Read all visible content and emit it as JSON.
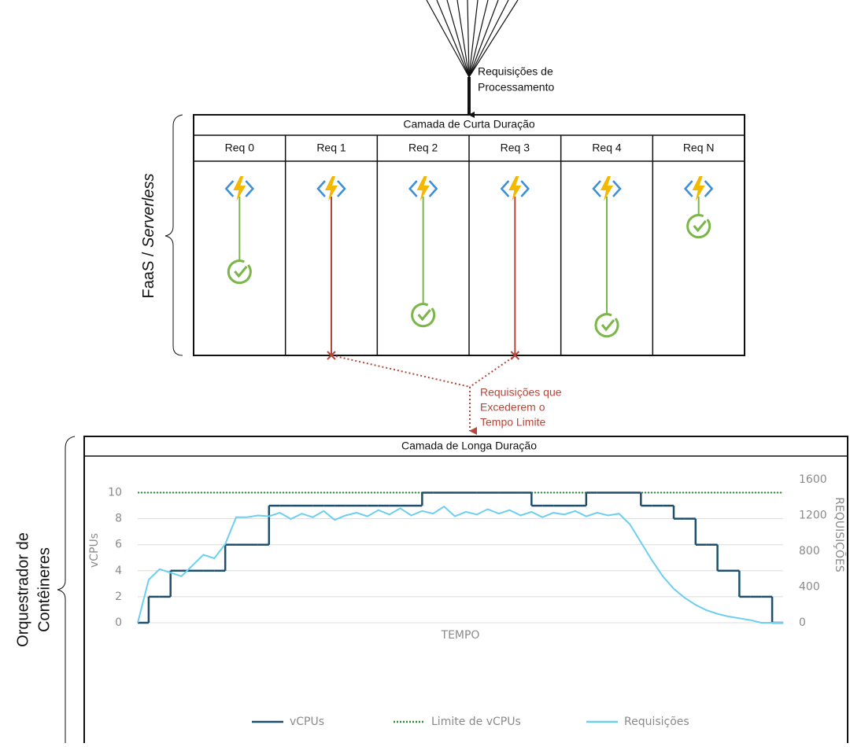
{
  "top_label": [
    "Requisições de",
    "Processamento"
  ],
  "short_layer": {
    "title": "Camada de Curta Duração",
    "brace_label": [
      "FaaS / ",
      "Serverless"
    ],
    "columns": [
      "Req 0",
      "Req 1",
      "Req 2",
      "Req 3",
      "Req 4",
      "Req N"
    ]
  },
  "timeout_label": [
    "Requisições que",
    "Excederem o",
    "Tempo Limite"
  ],
  "long_layer": {
    "title": "Camada de Longa Duração",
    "brace_label": [
      "Orquestrador de",
      "Contêineres"
    ]
  },
  "chart_data": {
    "type": "line",
    "xlabel": "TEMPO",
    "ylabel": "vCPUs",
    "y2label": "REQUISIÇÕES",
    "ylim": [
      0,
      11
    ],
    "yticks": [
      0,
      2,
      4,
      6,
      8,
      10
    ],
    "y2lim": [
      0,
      1600
    ],
    "y2ticks": [
      0,
      400,
      800,
      1200,
      1600
    ],
    "grid": true,
    "series": [
      {
        "name": "vCPUs",
        "color": "#1f4e6b",
        "step": true,
        "values": [
          0,
          2,
          2,
          4,
          4,
          4,
          4,
          4,
          6,
          6,
          6,
          6,
          9,
          9,
          9,
          9,
          9,
          9,
          9,
          9,
          9,
          9,
          9,
          9,
          9,
          9,
          10,
          10,
          10,
          10,
          10,
          10,
          10,
          10,
          10,
          10,
          9,
          9,
          9,
          9,
          9,
          10,
          10,
          10,
          10,
          10,
          9,
          9,
          9,
          8,
          8,
          6,
          6,
          4,
          4,
          2,
          2,
          2,
          0,
          0
        ]
      },
      {
        "name": "Requisições",
        "color": "#6ccff0",
        "axis": "y2",
        "values": [
          0,
          480,
          600,
          560,
          520,
          640,
          760,
          720,
          880,
          1180,
          1180,
          1200,
          1190,
          1230,
          1160,
          1220,
          1180,
          1250,
          1150,
          1200,
          1230,
          1190,
          1260,
          1210,
          1280,
          1200,
          1250,
          1220,
          1300,
          1190,
          1240,
          1210,
          1270,
          1220,
          1260,
          1200,
          1240,
          1180,
          1230,
          1210,
          1250,
          1190,
          1230,
          1200,
          1220,
          1100,
          900,
          700,
          520,
          380,
          280,
          200,
          140,
          100,
          70,
          50,
          30,
          0,
          0,
          0
        ]
      }
    ],
    "threshold": {
      "name": "Limite de vCPUs",
      "color": "#2e8b3a",
      "value": 10
    }
  }
}
